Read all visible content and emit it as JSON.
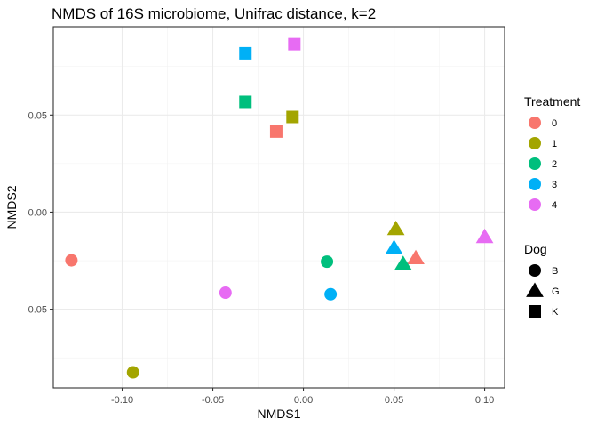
{
  "chart_data": {
    "type": "scatter",
    "title": "NMDS of 16S microbiome, Unifrac distance, k=2",
    "xlabel": "NMDS1",
    "ylabel": "NMDS2",
    "xlim": [
      -0.138,
      0.111
    ],
    "ylim": [
      -0.0905,
      0.0955
    ],
    "xticks": [
      -0.1,
      -0.05,
      0.0,
      0.05,
      0.1
    ],
    "xtick_labels": [
      "-0.10",
      "-0.05",
      "0.00",
      "0.05",
      "0.10"
    ],
    "yticks": [
      -0.05,
      0.0,
      0.05
    ],
    "ytick_labels": [
      "-0.05",
      "0.00",
      "0.05"
    ],
    "grid": true,
    "legend_position": "right",
    "color_legend": {
      "title": "Treatment",
      "entries": [
        {
          "label": "0",
          "color": "#F8766D"
        },
        {
          "label": "1",
          "color": "#A3A500"
        },
        {
          "label": "2",
          "color": "#00BF7D"
        },
        {
          "label": "3",
          "color": "#00B0F6"
        },
        {
          "label": "4",
          "color": "#E76BF3"
        }
      ]
    },
    "shape_legend": {
      "title": "Dog",
      "entries": [
        {
          "label": "B",
          "shape": "circle"
        },
        {
          "label": "G",
          "shape": "triangle"
        },
        {
          "label": "K",
          "shape": "square"
        }
      ]
    },
    "points": [
      {
        "x": -0.128,
        "y": -0.0248,
        "treatment": "0",
        "dog": "B"
      },
      {
        "x": -0.094,
        "y": -0.0825,
        "treatment": "1",
        "dog": "B"
      },
      {
        "x": 0.013,
        "y": -0.0255,
        "treatment": "2",
        "dog": "B"
      },
      {
        "x": 0.015,
        "y": -0.0423,
        "treatment": "3",
        "dog": "B"
      },
      {
        "x": -0.043,
        "y": -0.0415,
        "treatment": "4",
        "dog": "B"
      },
      {
        "x": 0.062,
        "y": -0.0237,
        "treatment": "0",
        "dog": "G"
      },
      {
        "x": 0.051,
        "y": -0.0087,
        "treatment": "1",
        "dog": "G"
      },
      {
        "x": 0.055,
        "y": -0.0267,
        "treatment": "2",
        "dog": "G"
      },
      {
        "x": 0.05,
        "y": -0.0185,
        "treatment": "3",
        "dog": "G"
      },
      {
        "x": 0.1,
        "y": -0.0128,
        "treatment": "4",
        "dog": "G"
      },
      {
        "x": -0.015,
        "y": 0.0415,
        "treatment": "0",
        "dog": "K"
      },
      {
        "x": -0.006,
        "y": 0.049,
        "treatment": "1",
        "dog": "K"
      },
      {
        "x": -0.032,
        "y": 0.0568,
        "treatment": "2",
        "dog": "K"
      },
      {
        "x": -0.032,
        "y": 0.0818,
        "treatment": "3",
        "dog": "K"
      },
      {
        "x": -0.005,
        "y": 0.0865,
        "treatment": "4",
        "dog": "K"
      }
    ]
  }
}
